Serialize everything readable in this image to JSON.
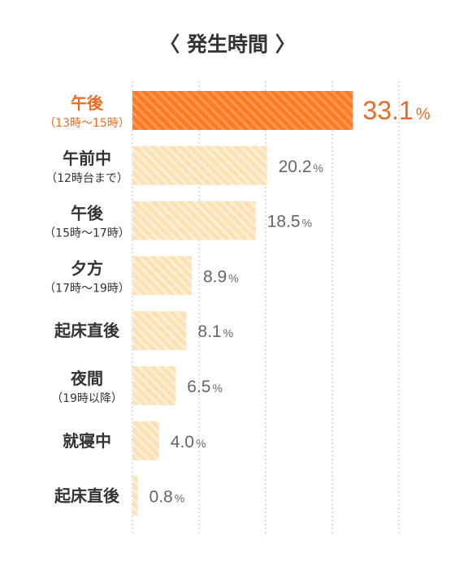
{
  "chart_data": {
    "type": "bar",
    "orientation": "horizontal",
    "title": "〈 発生時間 〉",
    "unit": "%",
    "categories": [
      {
        "main": "午後",
        "sub": "（13時～15時）"
      },
      {
        "main": "午前中",
        "sub": "（12時台まで）"
      },
      {
        "main": "午後",
        "sub": "（15時～17時）"
      },
      {
        "main": "夕方",
        "sub": "（17時～19時）"
      },
      {
        "main": "起床直後",
        "sub": ""
      },
      {
        "main": "夜間",
        "sub": "（19時以降）"
      },
      {
        "main": "就寝中",
        "sub": ""
      },
      {
        "main": "起床直後",
        "sub": ""
      }
    ],
    "values": [
      33.1,
      20.2,
      18.5,
      8.9,
      8.1,
      6.5,
      4.0,
      0.8
    ],
    "value_labels": [
      "33.1",
      "20.2",
      "18.5",
      "8.9",
      "8.1",
      "6.5",
      "4.0",
      "0.8"
    ],
    "highlight_index": 0,
    "xlim": [
      0,
      40
    ],
    "grid": true,
    "colors": {
      "highlight": "#ff7a22",
      "highlight_stripe": "#ff9a55",
      "bar": "#fde0b4",
      "bar_stripe": "#fff0d8",
      "highlight_text": "#ee6a22",
      "text": "#333333",
      "value_text": "#666666",
      "grid": "#bbbbbb"
    }
  }
}
